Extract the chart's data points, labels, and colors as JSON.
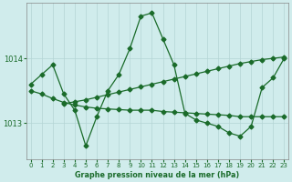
{
  "bg_color": "#d0ecec",
  "grid_color": "#b4d4d4",
  "line_color": "#1a6b2a",
  "xlabel": "Graphe pression niveau de la mer (hPa)",
  "xlim_min": -0.4,
  "xlim_max": 23.4,
  "ylim_min": 1012.45,
  "ylim_max": 1014.85,
  "yticks": [
    1013,
    1014
  ],
  "xticks": [
    0,
    1,
    2,
    3,
    4,
    5,
    6,
    7,
    8,
    9,
    10,
    11,
    12,
    13,
    14,
    15,
    16,
    17,
    18,
    19,
    20,
    21,
    22,
    23
  ],
  "s1_x": [
    0,
    1,
    2,
    3,
    4,
    5,
    6,
    7,
    8,
    9,
    10,
    11,
    12,
    13,
    14,
    15,
    16,
    17,
    18,
    19,
    20,
    21,
    22,
    23
  ],
  "s1_y": [
    1013.6,
    1013.75,
    1013.9,
    1013.45,
    1013.2,
    1012.65,
    1013.1,
    1013.5,
    1013.75,
    1014.15,
    1014.65,
    1014.7,
    1014.3,
    1013.9,
    1013.15,
    1013.05,
    1013.0,
    1012.95,
    1012.85,
    1012.8,
    1012.95,
    1013.55,
    1013.7,
    1014.0
  ],
  "s2_x": [
    3,
    4,
    5,
    6,
    7,
    8,
    9,
    10,
    11,
    12,
    13,
    14,
    15,
    16,
    17,
    18,
    19,
    20,
    21,
    22,
    23
  ],
  "s2_y": [
    1013.3,
    1013.33,
    1013.36,
    1013.4,
    1013.44,
    1013.48,
    1013.52,
    1013.56,
    1013.6,
    1013.64,
    1013.68,
    1013.72,
    1013.76,
    1013.8,
    1013.84,
    1013.88,
    1013.92,
    1013.95,
    1013.98,
    1014.0,
    1014.02
  ],
  "s3_x": [
    0,
    1,
    2,
    3,
    4,
    5,
    6,
    7,
    8,
    9,
    10,
    11,
    12,
    13,
    14,
    15,
    16,
    17,
    18,
    19,
    20,
    21,
    22,
    23
  ],
  "s3_y": [
    1013.5,
    1013.45,
    1013.38,
    1013.32,
    1013.28,
    1013.25,
    1013.23,
    1013.22,
    1013.21,
    1013.2,
    1013.2,
    1013.2,
    1013.18,
    1013.17,
    1013.16,
    1013.15,
    1013.14,
    1013.13,
    1013.12,
    1013.1,
    1013.1,
    1013.1,
    1013.1,
    1013.1
  ]
}
